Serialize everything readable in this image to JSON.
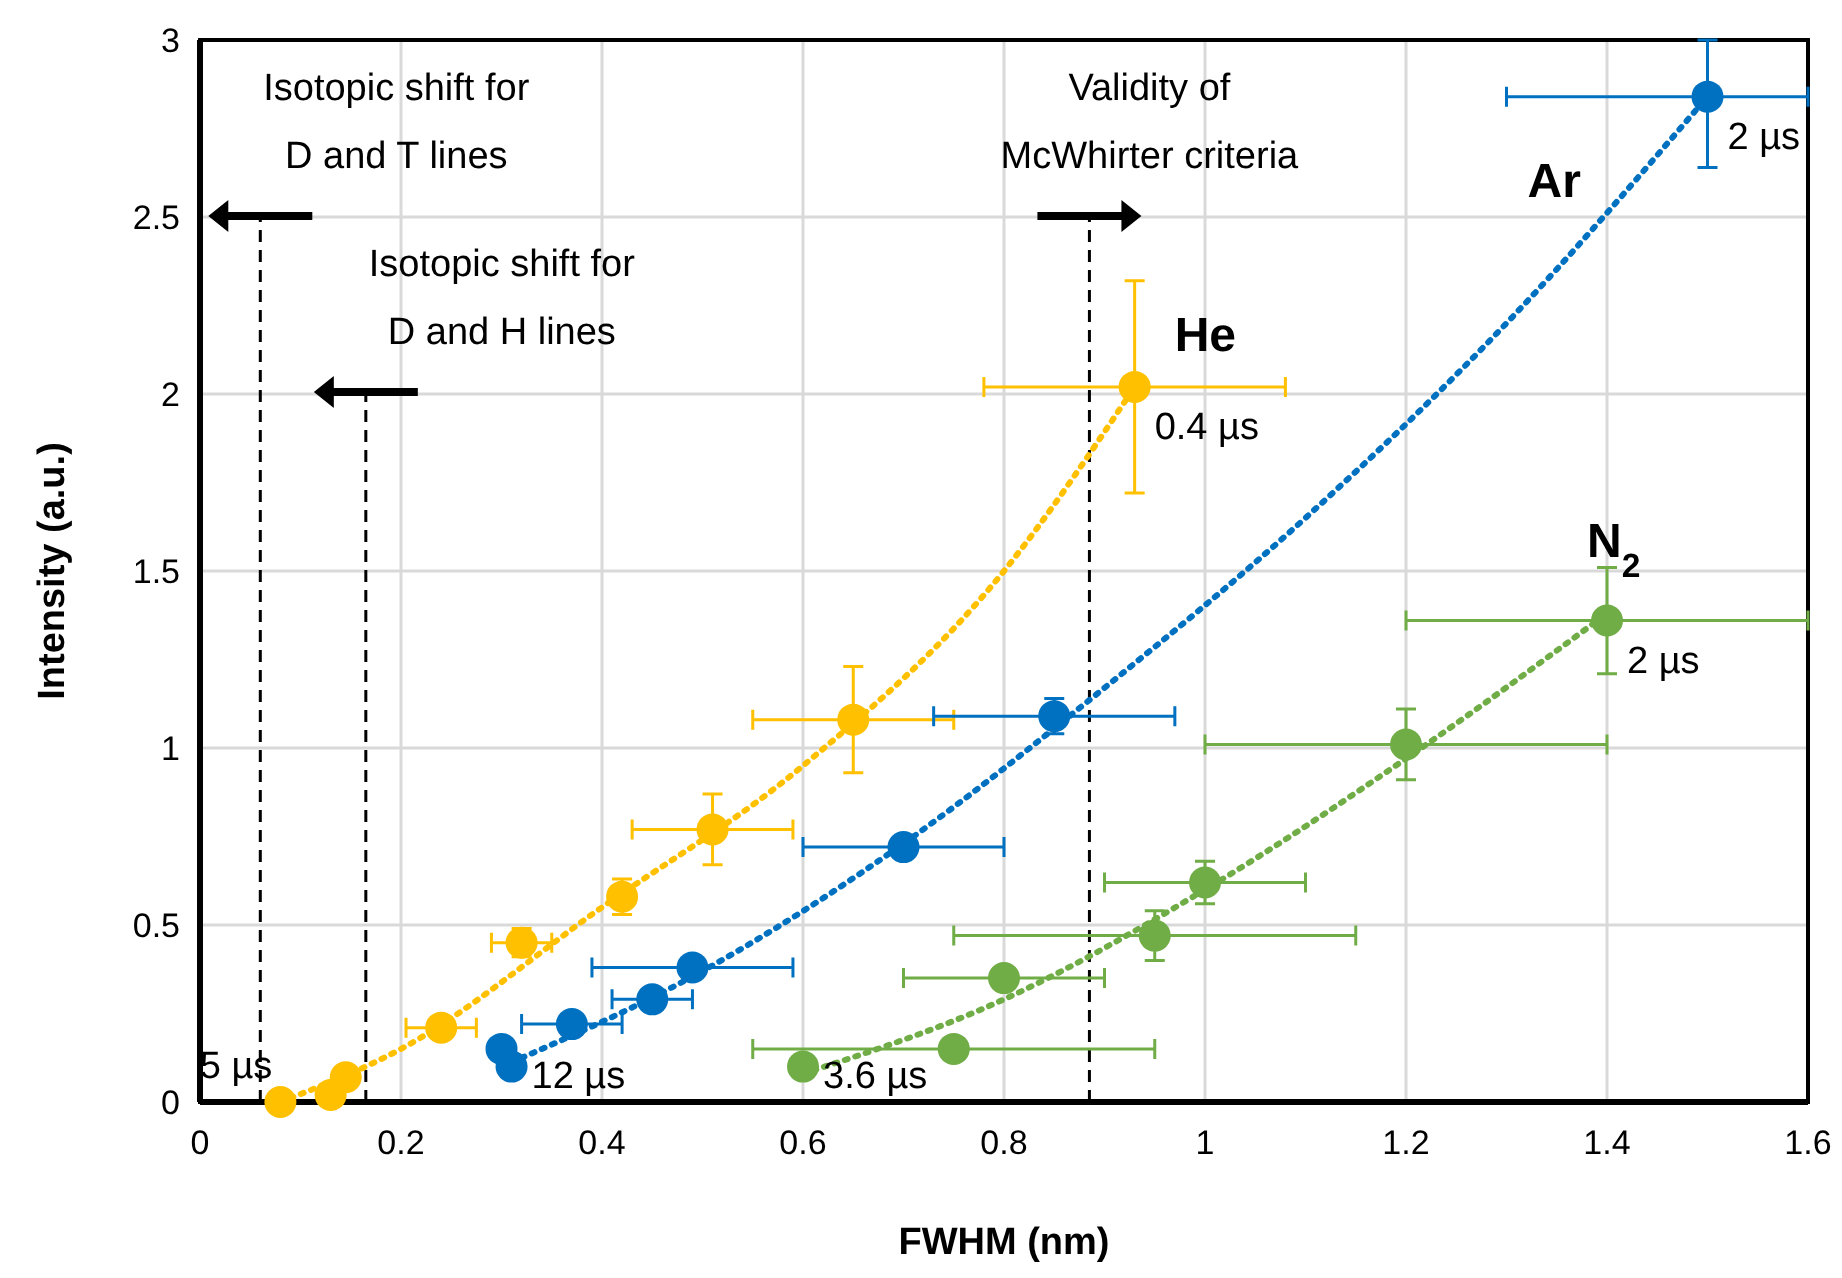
{
  "chart_data": {
    "type": "scatter",
    "xlabel": "FWHM (nm)",
    "ylabel": "Intensity (a.u.)",
    "xlim": [
      0,
      1.6
    ],
    "xticks": [
      0,
      0.2,
      0.4,
      0.6,
      0.8,
      1,
      1.2,
      1.4,
      1.6
    ],
    "ylim": [
      0,
      3
    ],
    "yticks": [
      0,
      0.5,
      1,
      1.5,
      2,
      2.5,
      3
    ],
    "grid": true,
    "marker": "circle",
    "series": [
      {
        "name": "He",
        "color": "#ffc000",
        "x": [
          0.08,
          0.13,
          0.145,
          0.24,
          0.32,
          0.42,
          0.51,
          0.65,
          0.93
        ],
        "values": [
          0,
          0.02,
          0.07,
          0.21,
          0.45,
          0.58,
          0.77,
          1.08,
          2.02
        ],
        "errors": [
          null,
          null,
          null,
          null,
          0.04,
          0.05,
          0.1,
          0.15,
          0.3
        ],
        "xerrors": [
          null,
          null,
          null,
          0.035,
          0.03,
          null,
          0.08,
          0.1,
          0.15
        ]
      },
      {
        "name": "Ar",
        "color": "#0070c0",
        "x": [
          0.3,
          0.31,
          0.37,
          0.45,
          0.49,
          0.7,
          0.85,
          1.5
        ],
        "values": [
          0.15,
          0.1,
          0.22,
          0.29,
          0.38,
          0.72,
          1.09,
          2.84
        ],
        "errors": [
          null,
          null,
          null,
          null,
          null,
          null,
          0.05,
          [
            2.64,
            3
          ]
        ],
        "xerrors": [
          null,
          null,
          0.05,
          0.04,
          0.1,
          0.1,
          0.12,
          [
            1.3,
            1.6
          ]
        ]
      },
      {
        "name": "N$_{2}$",
        "color": "#70ad47",
        "x": [
          0.6,
          0.75,
          0.8,
          0.95,
          1,
          1.2,
          1.4
        ],
        "values": [
          0.1,
          0.15,
          0.35,
          0.47,
          0.62,
          1.01,
          1.36
        ],
        "errors": [
          null,
          null,
          null,
          0.07,
          0.06,
          0.1,
          0.15
        ],
        "xerrors": [
          null,
          0.2,
          0.1,
          0.2,
          0.1,
          0.2,
          0.2
        ]
      },
      {
        "type": "line",
        "marker": "none",
        "line_style": "dotted",
        "color": "#ffc000",
        "x": [
          0.08,
          0.2,
          0.4,
          0.6,
          0.8,
          0.93
        ],
        "values": [
          0,
          0.15,
          0.55,
          0.95,
          1.5,
          2.02
        ]
      },
      {
        "type": "line",
        "marker": "none",
        "line_style": "dotted",
        "color": "#0070c0",
        "x": [
          0.3,
          0.5,
          0.7,
          0.9,
          1.1,
          1.3,
          1.5
        ],
        "values": [
          0.1,
          0.37,
          0.73,
          1.17,
          1.65,
          2.2,
          2.84
        ]
      },
      {
        "type": "line",
        "marker": "none",
        "line_style": "dotted",
        "color": "#70ad47",
        "x": [
          0.6,
          0.8,
          1,
          1.2,
          1.4
        ],
        "values": [
          0.08,
          0.29,
          0.6,
          0.97,
          1.38
        ]
      }
    ],
    "ref_lines": [
      {
        "axis": "x",
        "value": 0.06,
        "label": "Isotopic shift for\nD and T lines",
        "line_style": "dashed",
        "color": "#000000"
      },
      {
        "axis": "x",
        "value": 0.165,
        "label": "Isotopic shift for\nD and H lines",
        "line_style": "dashed",
        "color": "#000000"
      },
      {
        "axis": "x",
        "value": 0.885,
        "label": "Validity of\nMcWhirter criteria",
        "line_style": "dashed",
        "color": "#000000"
      }
    ],
    "annotations": [
      {
        "text": "5 µs",
        "x": 0.08,
        "y": 0
      },
      {
        "text": "12 µs",
        "x": 0.31,
        "y": 0.1
      },
      {
        "text": "3.6 µs",
        "x": 0.6,
        "y": 0.1
      },
      {
        "text": "0.4 µs",
        "x": 0.93,
        "y": 2.02
      },
      {
        "text": "2 µs",
        "x": 1.5,
        "y": 2.84
      },
      {
        "text": "2 µs",
        "x": 1.4,
        "y": 1.36
      }
    ]
  }
}
